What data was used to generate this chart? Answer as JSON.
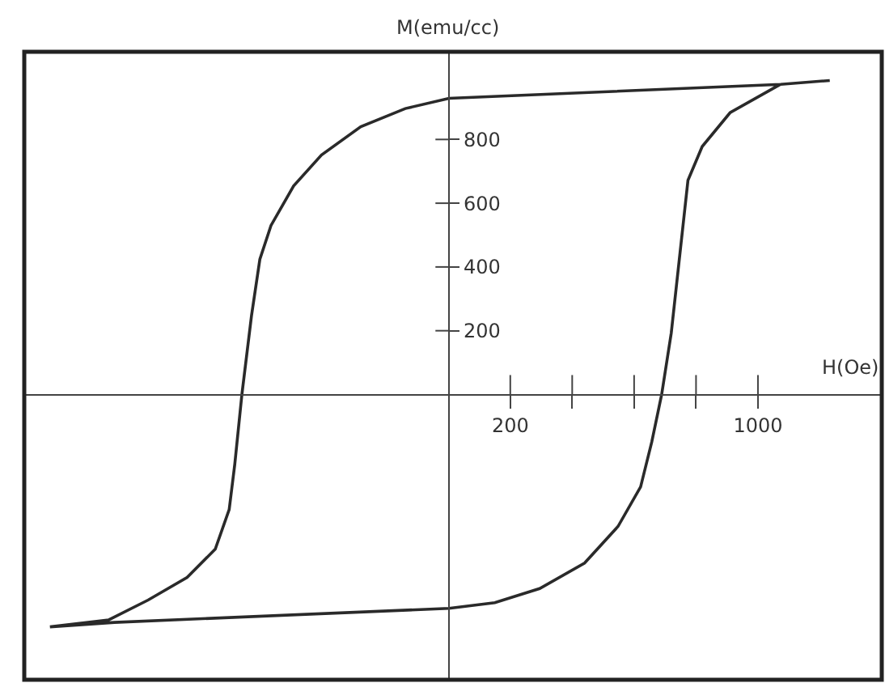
{
  "chart_data": {
    "type": "line",
    "xlabel": "H(Oe)",
    "ylabel": "M(emu/cc)",
    "series": [
      {
        "color": "#2a2a2a",
        "x": [
          1232,
          1073,
          2,
          -139,
          -283,
          -410,
          -500,
          -573,
          -609,
          -636,
          -667,
          -690,
          -708,
          -753,
          -844,
          -970,
          -1097,
          -1287,
          -1079,
          2,
          150,
          295,
          440,
          548,
          621,
          657,
          689,
          720,
          774,
          820,
          910,
          1073
        ],
        "values": [
          985,
          973,
          929,
          897,
          840,
          751,
          654,
          530,
          424,
          247,
          0,
          -219,
          -361,
          -485,
          -574,
          -645,
          -707,
          -729,
          -715,
          -671,
          -653,
          -609,
          -529,
          -414,
          -290,
          -149,
          0,
          193,
          672,
          778,
          884,
          973
        ]
      }
    ],
    "xlim": [
      -1370,
      1400
    ],
    "ylim": [
      -895,
      1075
    ],
    "xticks": [
      200,
      {
        "value": 400,
        "label": null
      },
      {
        "value": 600,
        "label": null
      },
      {
        "value": 800,
        "label": null
      },
      1000
    ],
    "yticks": [
      200,
      400,
      600,
      800
    ],
    "grid": false,
    "marker": "none",
    "line_style": "solid"
  }
}
